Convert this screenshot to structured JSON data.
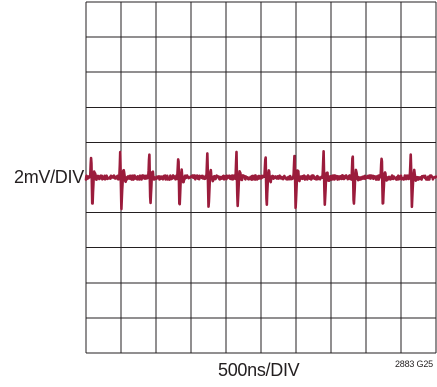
{
  "chart_data": {
    "type": "line",
    "title": "",
    "xlabel": "500ns/DIV",
    "ylabel": "2mV/DIV",
    "figure_id": "2883 G25",
    "grid": true,
    "divisions": {
      "x": 10,
      "y": 10
    },
    "trace_color": "#9b1c3c",
    "x_per_div_ns": 500,
    "y_per_div_mv": 2,
    "x_range_divisions": [
      0,
      10
    ],
    "y_range_divisions": [
      -5,
      5
    ],
    "series": [
      {
        "baseline_divisions": 0,
        "spike_interval_divisions": 0.83,
        "spike_amplitude_divisions": 0.8,
        "noise_amplitude_divisions": 0.15
      }
    ]
  }
}
